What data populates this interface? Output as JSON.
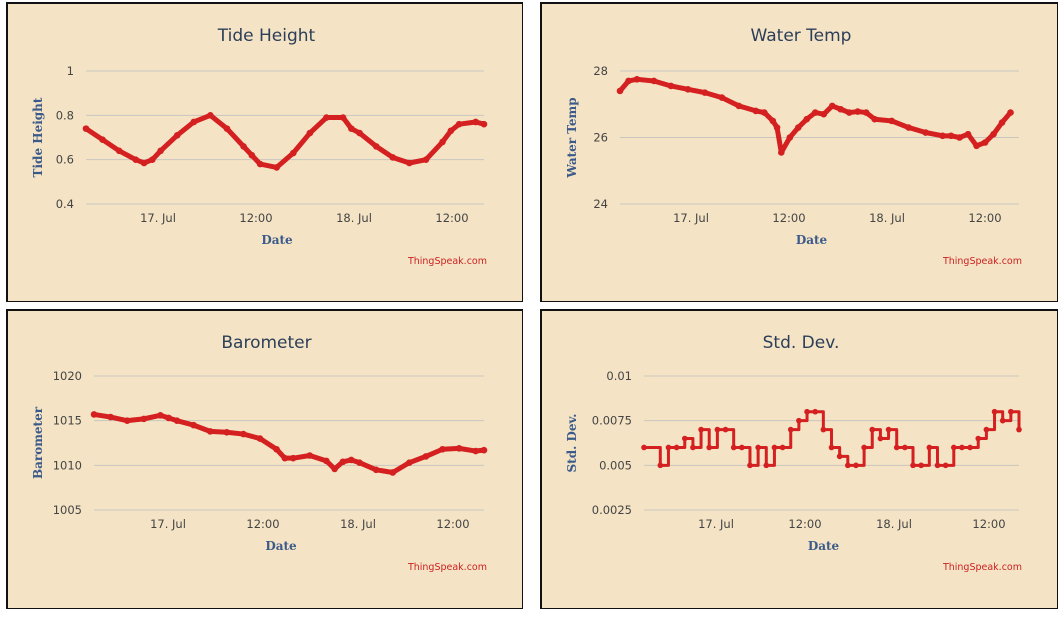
{
  "colors": {
    "series": "#d42020",
    "background": "#f4e4c5",
    "grid": "#c9c6c0"
  },
  "chart_data": [
    {
      "type": "line",
      "title": "Tide Height",
      "xlabel": "Date",
      "ylabel": "Tide Height",
      "credit": "ThingSpeak.com",
      "x_ticks": [
        "17. Jul",
        "12:00",
        "18. Jul",
        "12:00"
      ],
      "y_ticks": [
        "0.4",
        "0.6",
        "0.8",
        "1"
      ],
      "ylim": [
        0.4,
        1.0
      ],
      "xlim": [
        -11,
        37
      ],
      "grid": true,
      "series": [
        {
          "x": [
            -11,
            -9,
            -7,
            -5,
            -4,
            -3,
            -2,
            0,
            2,
            4,
            6,
            8,
            9,
            10,
            12,
            14,
            16,
            18,
            20,
            21,
            22,
            24,
            26,
            28,
            30,
            32,
            33,
            34,
            36,
            37
          ],
          "y": [
            0.74,
            0.69,
            0.64,
            0.6,
            0.585,
            0.6,
            0.64,
            0.71,
            0.77,
            0.8,
            0.74,
            0.66,
            0.62,
            0.58,
            0.565,
            0.63,
            0.72,
            0.79,
            0.79,
            0.74,
            0.72,
            0.66,
            0.61,
            0.585,
            0.6,
            0.68,
            0.73,
            0.76,
            0.77,
            0.76
          ]
        }
      ]
    },
    {
      "type": "line",
      "title": "Water Temp",
      "xlabel": "Date",
      "ylabel": "Water Temp",
      "credit": "ThingSpeak.com",
      "x_ticks": [
        "17. Jul",
        "12:00",
        "18. Jul",
        "12:00"
      ],
      "y_ticks": [
        "24",
        "26",
        "28"
      ],
      "ylim": [
        24,
        28
      ],
      "xlim": [
        -10,
        37
      ],
      "grid": true,
      "series": [
        {
          "x": [
            -10,
            -9,
            -8,
            -6,
            -4,
            -2,
            0,
            2,
            4,
            6,
            7,
            8,
            8.5,
            9,
            10,
            11,
            12,
            13,
            14,
            15,
            16,
            17,
            18,
            19,
            20,
            22,
            24,
            26,
            28,
            29,
            30,
            31,
            32,
            33,
            34,
            35,
            36
          ],
          "y": [
            27.4,
            27.7,
            27.75,
            27.7,
            27.55,
            27.45,
            27.35,
            27.2,
            26.95,
            26.8,
            26.75,
            26.5,
            26.3,
            25.55,
            26.0,
            26.3,
            26.55,
            26.75,
            26.7,
            26.95,
            26.85,
            26.75,
            26.78,
            26.75,
            26.55,
            26.5,
            26.3,
            26.15,
            26.05,
            26.05,
            26.0,
            26.1,
            25.75,
            25.85,
            26.1,
            26.45,
            26.75
          ]
        }
      ]
    },
    {
      "type": "line",
      "title": "Barometer",
      "xlabel": "Date",
      "ylabel": "Barometer",
      "credit": "ThingSpeak.com",
      "x_ticks": [
        "17. Jul",
        "12:00",
        "18. Jul",
        "12:00"
      ],
      "y_ticks": [
        "1005",
        "1010",
        "1015",
        "1020"
      ],
      "ylim": [
        1005,
        1020
      ],
      "xlim": [
        -10,
        37
      ],
      "grid": true,
      "series": [
        {
          "x": [
            -10,
            -8,
            -6,
            -4,
            -2,
            -1,
            0,
            2,
            4,
            6,
            8,
            10,
            12,
            13,
            14,
            16,
            18,
            19,
            20,
            21,
            22,
            24,
            26,
            28,
            30,
            32,
            34,
            36,
            37
          ],
          "y": [
            1015.7,
            1015.4,
            1015.0,
            1015.2,
            1015.6,
            1015.3,
            1015.0,
            1014.5,
            1013.8,
            1013.7,
            1013.5,
            1013.0,
            1011.8,
            1010.8,
            1010.8,
            1011.1,
            1010.5,
            1009.6,
            1010.4,
            1010.6,
            1010.3,
            1009.5,
            1009.2,
            1010.3,
            1011.0,
            1011.8,
            1011.9,
            1011.6,
            1011.7
          ]
        }
      ]
    },
    {
      "type": "line",
      "title": "Std. Dev.",
      "xlabel": "Date",
      "ylabel": "Std. Dev.",
      "credit": "ThingSpeak.com",
      "x_ticks": [
        "17. Jul",
        "12:00",
        "18. Jul",
        "12:00"
      ],
      "y_ticks": [
        "0.0025",
        "0.005",
        "0.0075",
        "0.01"
      ],
      "ylim": [
        0.0025,
        0.01
      ],
      "xlim": [
        -9,
        37
      ],
      "grid": true,
      "series": [
        {
          "x": [
            -9,
            -7,
            -6,
            -5,
            -4,
            -3,
            -2,
            -1,
            0,
            1,
            2,
            3,
            4,
            5,
            6,
            7,
            8,
            9,
            10,
            11,
            12,
            13,
            14,
            15,
            16,
            17,
            18,
            19,
            20,
            21,
            22,
            23,
            24,
            25,
            26,
            27,
            28,
            29,
            30,
            31,
            32,
            33,
            34,
            35,
            36,
            37
          ],
          "y": [
            0.006,
            0.005,
            0.006,
            0.006,
            0.0065,
            0.006,
            0.007,
            0.006,
            0.007,
            0.007,
            0.006,
            0.006,
            0.005,
            0.006,
            0.005,
            0.006,
            0.006,
            0.007,
            0.0075,
            0.008,
            0.008,
            0.007,
            0.006,
            0.0055,
            0.005,
            0.005,
            0.006,
            0.007,
            0.0065,
            0.007,
            0.006,
            0.006,
            0.005,
            0.005,
            0.006,
            0.005,
            0.005,
            0.006,
            0.006,
            0.006,
            0.0065,
            0.007,
            0.008,
            0.0075,
            0.008,
            0.007
          ]
        }
      ]
    }
  ]
}
